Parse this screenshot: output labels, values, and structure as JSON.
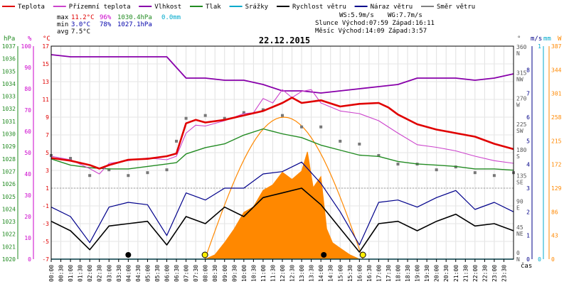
{
  "legend": [
    {
      "label": "Teplota",
      "color": "#e00000"
    },
    {
      "label": "Přízemní teplota",
      "color": "#cc44cc"
    },
    {
      "label": "Vlhkost",
      "color": "#8800aa"
    },
    {
      "label": "Tlak",
      "color": "#228b22"
    },
    {
      "label": "Srážky",
      "color": "#00aacc"
    },
    {
      "label": "Rychlost větru",
      "color": "#000000"
    },
    {
      "label": "Náraz větru",
      "color": "#00008b"
    },
    {
      "label": "Směr větru",
      "color": "#808080"
    }
  ],
  "stats": {
    "max_label": "max",
    "max_temp": "11.2°C",
    "max_hum": "96%",
    "max_press": "1030.4hPa",
    "rain": "0.0mm",
    "min_label": "min",
    "min_temp": "3.0°C",
    "min_hum": "78%",
    "min_press": "1027.1hPa",
    "avg_label": "avg",
    "avg_temp": "7.5°C"
  },
  "info": {
    "ws": "WS:5.9m/s",
    "wg": "WG:7.7m/s",
    "sun": "Slunce Východ:07:59  Západ:16:11",
    "moon": "Měsíc  Východ:14:09  Západ:3:57"
  },
  "date": "22.12.2015",
  "axis_units": {
    "hpa": "hPa",
    "pct": "%",
    "deg": "°C",
    "dir": "°",
    "ms": "m/s",
    "mm": "mm",
    "w": "W",
    "time": "čas"
  },
  "colors": {
    "temp": "#e00000",
    "ground": "#cc44cc",
    "hum": "#8800aa",
    "press": "#228b22",
    "rain": "#00aacc",
    "wind": "#000000",
    "gust": "#00008b",
    "dir": "#777777",
    "solar": "#ff8800",
    "sunpath": "#ff8800",
    "axis_hpa": "#228b22",
    "axis_pct": "#cc00cc",
    "axis_deg": "#e00000",
    "axis_ms": "#000088",
    "axis_mm": "#00aacc",
    "axis_w": "#ff8800"
  },
  "chart_data": {
    "type": "line",
    "x_start_hour": 0,
    "x_end_hour": 24,
    "x_tick_labels": [
      "00:00",
      "00:30",
      "01:00",
      "01:30",
      "02:00",
      "02:30",
      "03:00",
      "03:30",
      "04:00",
      "04:30",
      "05:00",
      "05:30",
      "06:00",
      "06:30",
      "07:00",
      "07:30",
      "08:00",
      "08:30",
      "09:00",
      "09:30",
      "10:00",
      "10:30",
      "11:00",
      "11:30",
      "12:00",
      "12:30",
      "13:00",
      "13:30",
      "14:00",
      "14:30",
      "15:00",
      "15:30",
      "16:00",
      "16:30",
      "17:00",
      "17:30",
      "18:00",
      "18:30",
      "19:00",
      "19:30",
      "20:00",
      "20:30",
      "21:00",
      "21:30",
      "22:00",
      "22:30",
      "23:00",
      "23:30"
    ],
    "axes": {
      "pressure_hpa": {
        "range": [
          1020,
          1037
        ],
        "ticks": [
          1020,
          1021,
          1022,
          1023,
          1024,
          1025,
          1026,
          1027,
          1028,
          1029,
          1030,
          1031,
          1032,
          1033,
          1034,
          1035,
          1036,
          1037
        ]
      },
      "humidity_pct": {
        "range": [
          0,
          100
        ],
        "ticks": [
          0,
          10,
          20,
          30,
          40,
          50,
          60,
          70,
          80,
          90,
          100
        ]
      },
      "temperature_c": {
        "range": [
          -7,
          17
        ],
        "ticks": [
          -7,
          -5,
          -3,
          -1,
          1,
          3,
          5,
          7,
          9,
          11,
          13,
          15,
          17
        ]
      },
      "wind_dir_deg": {
        "ticks": [
          {
            "deg": "0",
            "lbl": "N"
          },
          {
            "deg": "45",
            "lbl": "NE"
          },
          {
            "deg": "90",
            "lbl": "E"
          },
          {
            "deg": "135",
            "lbl": "SE"
          },
          {
            "deg": "180",
            "lbl": "S"
          },
          {
            "deg": "225",
            "lbl": "SW"
          },
          {
            "deg": "270",
            "lbl": "W"
          },
          {
            "deg": "315",
            "lbl": "NW"
          },
          {
            "deg": "360",
            "lbl": "N"
          }
        ]
      },
      "wind_ms": {
        "range": [
          0,
          9
        ],
        "ticks": [
          0,
          1,
          2,
          3,
          4,
          5,
          6,
          7,
          8
        ]
      },
      "rain_mm": {
        "range": [
          0,
          1
        ],
        "ticks": [
          0,
          1
        ]
      },
      "solar_w": {
        "range": [
          0,
          387
        ],
        "ticks": [
          0,
          43,
          86,
          129,
          172,
          215,
          258,
          301,
          344,
          387
        ]
      }
    },
    "series": [
      {
        "name": "Teplota",
        "unit": "°C",
        "points": [
          [
            0,
            4.4
          ],
          [
            1,
            4.1
          ],
          [
            2,
            3.6
          ],
          [
            2.5,
            3.2
          ],
          [
            3,
            3.6
          ],
          [
            4,
            4.2
          ],
          [
            5,
            4.3
          ],
          [
            6,
            4.6
          ],
          [
            6.5,
            4.9
          ],
          [
            7,
            8.3
          ],
          [
            7.5,
            8.7
          ],
          [
            8,
            8.4
          ],
          [
            9,
            8.7
          ],
          [
            10,
            9.2
          ],
          [
            11,
            9.7
          ],
          [
            12,
            10.6
          ],
          [
            12.5,
            11.2
          ],
          [
            13,
            10.6
          ],
          [
            14,
            10.9
          ],
          [
            15,
            10.2
          ],
          [
            16,
            10.5
          ],
          [
            17,
            10.6
          ],
          [
            17.5,
            10.1
          ],
          [
            18,
            9.3
          ],
          [
            19,
            8.2
          ],
          [
            20,
            7.6
          ],
          [
            21,
            7.2
          ],
          [
            22,
            6.8
          ],
          [
            23,
            6.0
          ],
          [
            24,
            5.4
          ]
        ]
      },
      {
        "name": "Přízemní teplota",
        "unit": "°C",
        "points": [
          [
            0,
            4.6
          ],
          [
            1,
            4.2
          ],
          [
            2,
            3.2
          ],
          [
            2.5,
            2.6
          ],
          [
            3,
            3.8
          ],
          [
            4,
            4.1
          ],
          [
            5,
            4.4
          ],
          [
            6,
            4.2
          ],
          [
            6.5,
            4.6
          ],
          [
            7,
            7.2
          ],
          [
            7.5,
            8.1
          ],
          [
            8,
            8.0
          ],
          [
            9,
            8.6
          ],
          [
            10,
            9.4
          ],
          [
            10.5,
            9.5
          ],
          [
            11,
            11.1
          ],
          [
            11.5,
            10.6
          ],
          [
            12,
            12.1
          ],
          [
            12.5,
            11.2
          ],
          [
            13,
            11.9
          ],
          [
            13.5,
            12.1
          ],
          [
            14,
            10.6
          ],
          [
            15,
            9.7
          ],
          [
            16,
            9.4
          ],
          [
            17,
            8.6
          ],
          [
            18,
            7.2
          ],
          [
            19,
            5.9
          ],
          [
            20,
            5.6
          ],
          [
            21,
            5.2
          ],
          [
            22,
            4.6
          ],
          [
            23,
            4.1
          ],
          [
            24,
            3.8
          ]
        ]
      },
      {
        "name": "Vlhkost",
        "unit": "%",
        "points": [
          [
            0,
            96
          ],
          [
            1,
            95
          ],
          [
            2,
            95
          ],
          [
            3,
            95
          ],
          [
            4,
            95
          ],
          [
            5,
            95
          ],
          [
            6,
            95
          ],
          [
            6.5,
            90
          ],
          [
            7,
            85
          ],
          [
            8,
            85
          ],
          [
            9,
            84
          ],
          [
            10,
            84
          ],
          [
            11,
            82
          ],
          [
            12,
            79
          ],
          [
            13,
            79
          ],
          [
            14,
            78
          ],
          [
            15,
            79
          ],
          [
            16,
            80
          ],
          [
            17,
            81
          ],
          [
            18,
            82
          ],
          [
            19,
            85
          ],
          [
            20,
            85
          ],
          [
            21,
            85
          ],
          [
            22,
            84
          ],
          [
            23,
            85
          ],
          [
            24,
            87
          ]
        ]
      },
      {
        "name": "Tlak",
        "unit": "hPa",
        "points": [
          [
            0,
            1028.0
          ],
          [
            1,
            1027.5
          ],
          [
            2,
            1027.3
          ],
          [
            3,
            1027.2
          ],
          [
            4,
            1027.2
          ],
          [
            5,
            1027.4
          ],
          [
            6,
            1027.6
          ],
          [
            6.5,
            1027.7
          ],
          [
            7,
            1028.4
          ],
          [
            8,
            1028.9
          ],
          [
            9,
            1029.2
          ],
          [
            10,
            1029.9
          ],
          [
            11,
            1030.4
          ],
          [
            12,
            1030.0
          ],
          [
            13,
            1029.7
          ],
          [
            14,
            1029.1
          ],
          [
            15,
            1028.7
          ],
          [
            16,
            1028.3
          ],
          [
            17,
            1028.2
          ],
          [
            18,
            1027.8
          ],
          [
            19,
            1027.6
          ],
          [
            20,
            1027.5
          ],
          [
            21,
            1027.4
          ],
          [
            22,
            1027.2
          ],
          [
            23,
            1027.2
          ],
          [
            24,
            1027.1
          ]
        ]
      },
      {
        "name": "Srážky",
        "unit": "mm",
        "points": [
          [
            0,
            0
          ],
          [
            24,
            0
          ]
        ]
      },
      {
        "name": "Rychlost větru",
        "unit": "m/s",
        "points": [
          [
            0,
            1.6
          ],
          [
            1,
            1.2
          ],
          [
            2,
            0.4
          ],
          [
            3,
            1.4
          ],
          [
            4,
            1.5
          ],
          [
            5,
            1.6
          ],
          [
            6,
            0.6
          ],
          [
            7,
            1.8
          ],
          [
            8,
            1.5
          ],
          [
            9,
            2.2
          ],
          [
            10,
            1.8
          ],
          [
            11,
            2.6
          ],
          [
            12,
            2.8
          ],
          [
            13,
            3.0
          ],
          [
            14,
            2.3
          ],
          [
            15,
            1.3
          ],
          [
            16,
            0.3
          ],
          [
            17,
            1.5
          ],
          [
            18,
            1.6
          ],
          [
            19,
            1.2
          ],
          [
            20,
            1.6
          ],
          [
            21,
            1.9
          ],
          [
            22,
            1.4
          ],
          [
            23,
            1.5
          ],
          [
            24,
            1.2
          ]
        ]
      },
      {
        "name": "Náraz větru",
        "unit": "m/s",
        "points": [
          [
            0,
            2.2
          ],
          [
            1,
            1.8
          ],
          [
            2,
            0.7
          ],
          [
            3,
            2.2
          ],
          [
            4,
            2.4
          ],
          [
            5,
            2.3
          ],
          [
            6,
            1.0
          ],
          [
            7,
            2.8
          ],
          [
            8,
            2.5
          ],
          [
            9,
            3.0
          ],
          [
            10,
            3.0
          ],
          [
            11,
            3.6
          ],
          [
            12,
            3.7
          ],
          [
            13,
            4.1
          ],
          [
            14,
            3.2
          ],
          [
            15,
            2.0
          ],
          [
            16,
            0.6
          ],
          [
            17,
            2.4
          ],
          [
            18,
            2.5
          ],
          [
            19,
            2.2
          ],
          [
            20,
            2.6
          ],
          [
            21,
            2.9
          ],
          [
            22,
            2.1
          ],
          [
            23,
            2.4
          ],
          [
            24,
            2.0
          ]
        ]
      },
      {
        "name": "Směr větru",
        "unit": "°",
        "points": [
          [
            0,
            175
          ],
          [
            1,
            170
          ],
          [
            2,
            140
          ],
          [
            3,
            150
          ],
          [
            4,
            140
          ],
          [
            5,
            145
          ],
          [
            6,
            150
          ],
          [
            6.5,
            200
          ],
          [
            7,
            240
          ],
          [
            8,
            245
          ],
          [
            9,
            240
          ],
          [
            10,
            250
          ],
          [
            11,
            255
          ],
          [
            12,
            245
          ],
          [
            13,
            225
          ],
          [
            14,
            225
          ],
          [
            15,
            200
          ],
          [
            16,
            195
          ],
          [
            17,
            175
          ],
          [
            18,
            160
          ],
          [
            19,
            160
          ],
          [
            20,
            150
          ],
          [
            21,
            155
          ],
          [
            22,
            145
          ],
          [
            23,
            140
          ],
          [
            24,
            145
          ]
        ]
      },
      {
        "name": "Sluneční záření",
        "unit": "W",
        "points": [
          [
            7.5,
            0
          ],
          [
            8,
            0
          ],
          [
            8.5,
            8
          ],
          [
            9,
            30
          ],
          [
            9.5,
            55
          ],
          [
            10,
            85
          ],
          [
            10.5,
            95
          ],
          [
            11,
            125
          ],
          [
            11.5,
            135
          ],
          [
            12,
            158
          ],
          [
            12.5,
            145
          ],
          [
            13,
            160
          ],
          [
            13.3,
            195
          ],
          [
            13.6,
            130
          ],
          [
            14,
            150
          ],
          [
            14.3,
            55
          ],
          [
            14.6,
            30
          ],
          [
            15,
            20
          ],
          [
            15.5,
            8
          ],
          [
            16,
            0
          ]
        ]
      }
    ],
    "sun_path": {
      "rise_hour": 7.98,
      "set_hour": 16.18,
      "peak_w": 258
    },
    "markers": [
      {
        "type": "moon",
        "hour": 4.0
      },
      {
        "type": "sunrise",
        "hour": 7.98
      },
      {
        "type": "moon",
        "hour": 14.15
      },
      {
        "type": "sunset",
        "hour": 16.18
      }
    ]
  }
}
